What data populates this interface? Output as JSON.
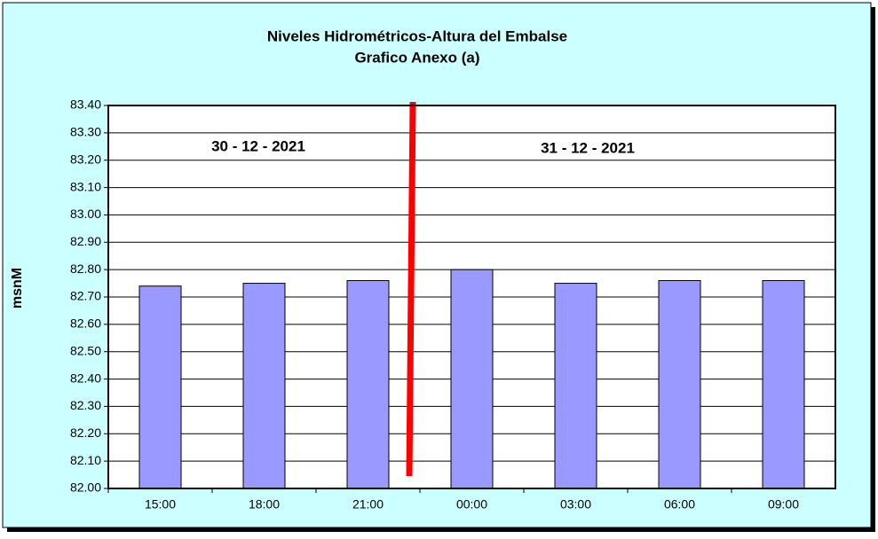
{
  "chart_data": {
    "type": "bar",
    "title": "Niveles Hidrométricos-Altura del Embalse",
    "subtitle": "Grafico Anexo (a)",
    "y_label": "msnM",
    "annotations": [
      "30 - 12 - 2021",
      "31 - 12 - 2021"
    ],
    "categories": [
      "15:00",
      "18:00",
      "21:00",
      "00:00",
      "03:00",
      "06:00",
      "09:00"
    ],
    "values": [
      82.74,
      82.75,
      82.76,
      82.8,
      82.75,
      82.76,
      82.76
    ],
    "color": "#9999ff",
    "ylim": [
      82.0,
      83.4
    ],
    "yticks": [
      {
        "value": 82.0,
        "label": "82.00"
      },
      {
        "value": 82.1,
        "label": "82.10"
      },
      {
        "value": 82.2,
        "label": "82.20"
      },
      {
        "value": 82.3,
        "label": "82.30"
      },
      {
        "value": 82.4,
        "label": "82.40"
      },
      {
        "value": 82.5,
        "label": "82.50"
      },
      {
        "value": 82.6,
        "label": "82.60"
      },
      {
        "value": 82.7,
        "label": "82.70"
      },
      {
        "value": 82.8,
        "label": "82.80"
      },
      {
        "value": 82.9,
        "label": "82.90"
      },
      {
        "value": 83.0,
        "label": "83.00"
      },
      {
        "value": 83.1,
        "label": "83.10"
      },
      {
        "value": 83.2,
        "label": "83.20"
      },
      {
        "value": 83.3,
        "label": "83.30"
      },
      {
        "value": 83.4,
        "label": "83.40"
      }
    ],
    "grid": true
  }
}
